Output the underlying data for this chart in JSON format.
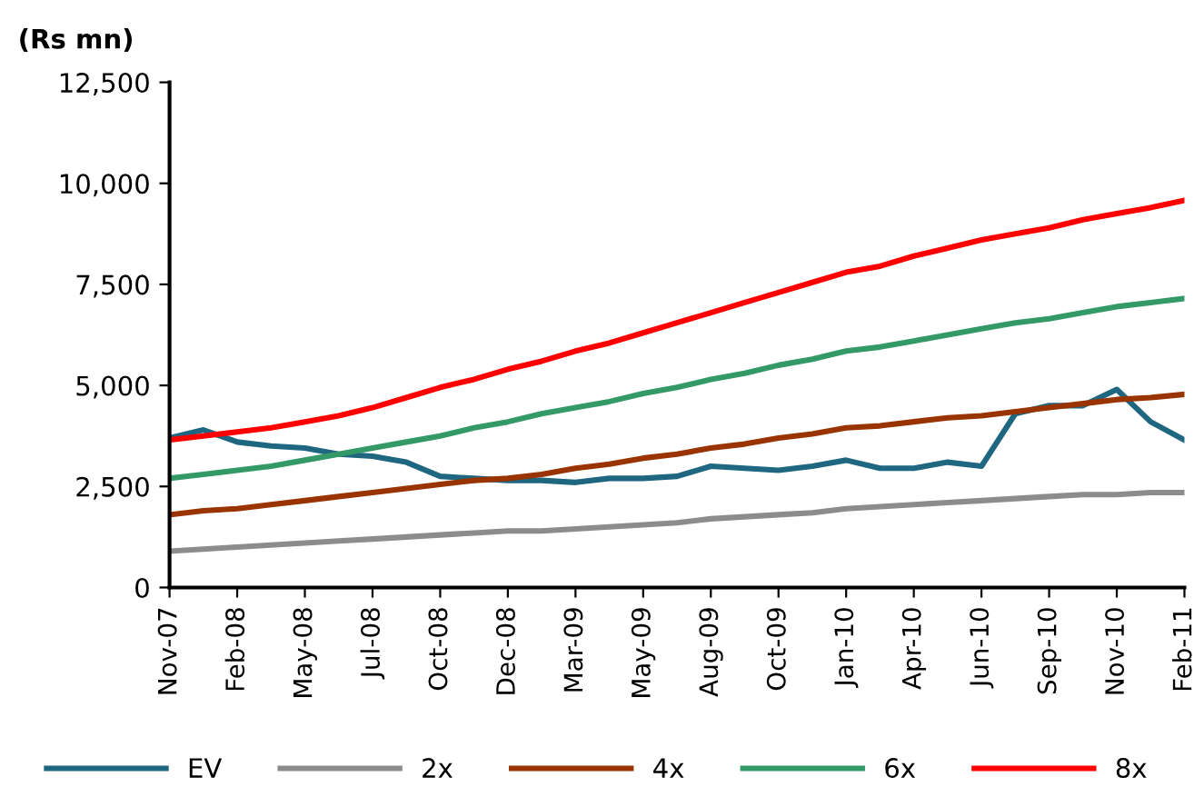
{
  "chart_data": {
    "type": "line",
    "ylabel": "(Rs mn)",
    "categories": [
      "Nov-07",
      null,
      "Feb-08",
      null,
      "May-08",
      null,
      "Jul-08",
      null,
      "Oct-08",
      null,
      "Dec-08",
      null,
      "Mar-09",
      null,
      "May-09",
      null,
      "Aug-09",
      null,
      "Oct-09",
      null,
      "Jan-10",
      null,
      "Apr-10",
      null,
      "Jun-10",
      null,
      "Sep-10",
      null,
      "Nov-10",
      null,
      "Feb-11"
    ],
    "series": [
      {
        "name": "EV",
        "color": "#1f6680",
        "values": [
          3700,
          3900,
          3600,
          3500,
          3450,
          3300,
          3250,
          3100,
          2750,
          2700,
          2650,
          2650,
          2600,
          2700,
          2700,
          2750,
          3000,
          2950,
          2900,
          3000,
          3150,
          2950,
          2950,
          3100,
          3000,
          4300,
          4500,
          4500,
          4900,
          4100,
          3650
        ]
      },
      {
        "name": "2x",
        "color": "#8c8c8c",
        "values": [
          900,
          950,
          1000,
          1050,
          1100,
          1150,
          1200,
          1250,
          1300,
          1350,
          1400,
          1400,
          1450,
          1500,
          1550,
          1600,
          1700,
          1750,
          1800,
          1850,
          1950,
          2000,
          2050,
          2100,
          2150,
          2200,
          2250,
          2300,
          2300,
          2350,
          2350
        ]
      },
      {
        "name": "4x",
        "color": "#993300",
        "values": [
          1800,
          1900,
          1950,
          2050,
          2150,
          2250,
          2350,
          2450,
          2550,
          2650,
          2700,
          2800,
          2950,
          3050,
          3200,
          3300,
          3450,
          3550,
          3700,
          3800,
          3950,
          4000,
          4100,
          4200,
          4250,
          4350,
          4450,
          4550,
          4650,
          4700,
          4780
        ]
      },
      {
        "name": "6x",
        "color": "#339966",
        "values": [
          2700,
          2800,
          2900,
          3000,
          3150,
          3300,
          3450,
          3600,
          3750,
          3950,
          4100,
          4300,
          4450,
          4600,
          4800,
          4950,
          5150,
          5300,
          5500,
          5650,
          5850,
          5950,
          6100,
          6250,
          6400,
          6550,
          6650,
          6800,
          6950,
          7050,
          7150
        ]
      },
      {
        "name": "8x",
        "color": "#ff0000",
        "values": [
          3650,
          3750,
          3850,
          3950,
          4100,
          4250,
          4450,
          4700,
          4950,
          5150,
          5400,
          5600,
          5850,
          6050,
          6300,
          6550,
          6800,
          7050,
          7300,
          7550,
          7800,
          7950,
          8200,
          8400,
          8600,
          8750,
          8900,
          9100,
          9250,
          9400,
          9580
        ]
      }
    ],
    "ylim": [
      0,
      12500
    ],
    "yticks": [
      0,
      {
        "value": 2500,
        "label": "2,500"
      },
      {
        "value": 5000,
        "label": "5,000"
      },
      {
        "value": 7500,
        "label": "7,500"
      },
      {
        "value": 10000,
        "label": "10,000"
      },
      {
        "value": 12500,
        "label": "12,500"
      }
    ],
    "grid": false,
    "legend": "bottom",
    "marker": "none",
    "line_style": "solid"
  }
}
